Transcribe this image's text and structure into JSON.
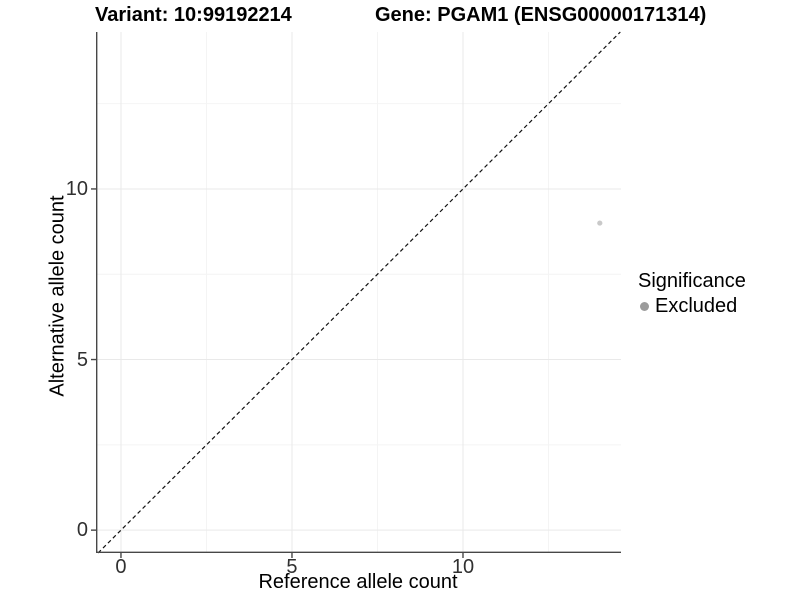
{
  "chart_data": {
    "type": "scatter",
    "title_left": "Variant: 10:99192214",
    "title_right": "Gene: PGAM1 (ENSG00000171314)",
    "xlabel": "Reference allele count",
    "ylabel": "Alternative allele count",
    "xlim": [
      -0.73,
      14.62
    ],
    "ylim": [
      -0.67,
      14.6
    ],
    "x_ticks": [
      0,
      5,
      10
    ],
    "y_ticks": [
      0,
      5,
      10
    ],
    "x_minor_ticks": [
      2.5,
      7.5,
      12.5
    ],
    "y_minor_ticks": [
      2.5,
      7.5,
      12.5
    ],
    "points": [
      {
        "x": 14,
        "y": 9,
        "significance": "Excluded"
      }
    ],
    "identity_line": {
      "slope": 1,
      "intercept": 0,
      "style": "dashed"
    },
    "legend": {
      "title": "Significance",
      "position": "right",
      "entries": [
        {
          "label": "Excluded",
          "color": "#9c9c9c"
        }
      ]
    },
    "grid": "major-and-minor",
    "colors": {
      "point": "#c9c9c9",
      "legend_dot": "#9c9c9c",
      "grid_major": "#e9e9e9",
      "grid_minor": "#f4f4f4",
      "axis_line": "#474747",
      "identity_line": "#111111",
      "tick_text": "#303030",
      "background": "#ffffff"
    }
  }
}
